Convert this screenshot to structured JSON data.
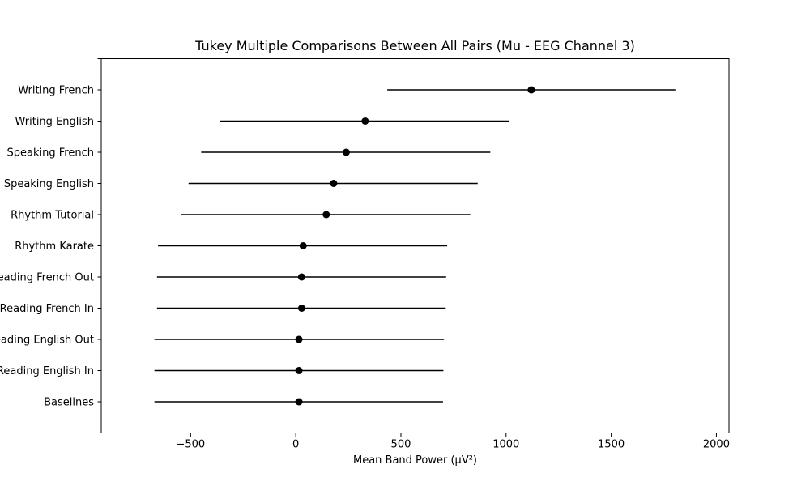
{
  "chart_data": {
    "type": "scatter",
    "title": "Tukey Multiple Comparisons Between All Pairs (Mu - EEG Channel 3)",
    "xlabel": "Mean Band Power (µV²)",
    "ylabel": "",
    "xlim": [
      -925,
      2060
    ],
    "xticks": [
      -500,
      0,
      500,
      1000,
      1500,
      2000
    ],
    "xtick_labels": [
      "−500",
      "0",
      "500",
      "1000",
      "1500",
      "2000"
    ],
    "grid": false,
    "legend": "none",
    "marker_color": "#000000",
    "categories": [
      "Writing French",
      "Writing English",
      "Speaking French",
      "Speaking English",
      "Rhythm Tutorial",
      "Rhythm Karate",
      "Reading French Out",
      "Reading French In",
      "Reading English Out",
      "Reading English In",
      "Baselines"
    ],
    "means": [
      1120,
      330,
      240,
      180,
      145,
      35,
      28,
      28,
      15,
      15,
      15
    ],
    "lower": [
      435,
      -360,
      -450,
      -510,
      -545,
      -655,
      -660,
      -660,
      -672,
      -672,
      -672
    ],
    "upper": [
      1805,
      1015,
      925,
      865,
      830,
      720,
      715,
      713,
      705,
      702,
      700
    ]
  }
}
